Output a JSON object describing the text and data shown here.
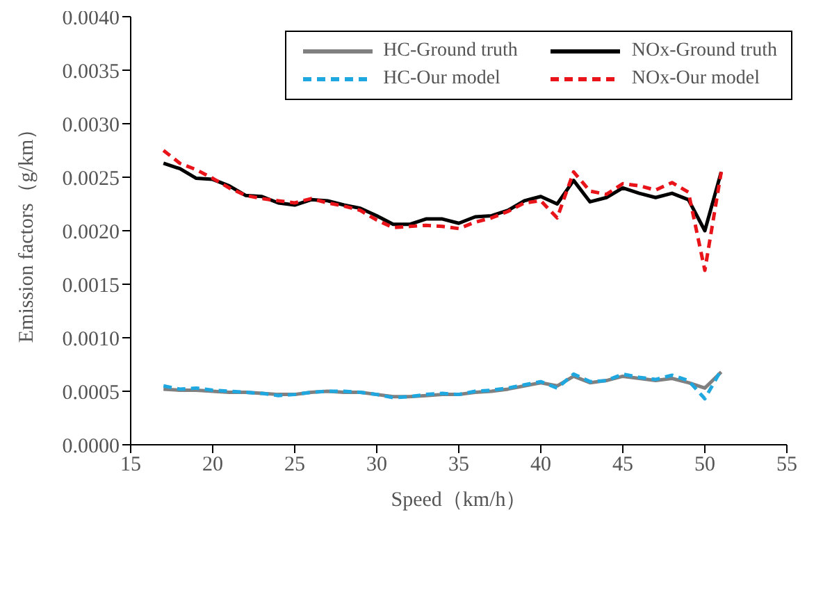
{
  "chart_data": {
    "type": "line",
    "xlabel": "Speed（km/h）",
    "ylabel": "Emission factors（g/km）",
    "x": [
      17,
      18,
      19,
      20,
      21,
      22,
      23,
      24,
      25,
      26,
      27,
      28,
      29,
      30,
      31,
      32,
      33,
      34,
      35,
      36,
      37,
      38,
      39,
      40,
      41,
      42,
      43,
      44,
      45,
      46,
      47,
      48,
      49,
      50,
      51
    ],
    "xlim": [
      15,
      55
    ],
    "xticks": [
      15,
      20,
      25,
      30,
      35,
      40,
      45,
      50,
      55
    ],
    "ylim": [
      0,
      0.004
    ],
    "yticks": [
      {
        "value": 0,
        "label": "0.0000"
      },
      {
        "value": 0.0005,
        "label": "0.0005"
      },
      {
        "value": 0.001,
        "label": "0.0010"
      },
      {
        "value": 0.0015,
        "label": "0.0015"
      },
      {
        "value": 0.002,
        "label": "0.0020"
      },
      {
        "value": 0.0025,
        "label": "0.0025"
      },
      {
        "value": 0.003,
        "label": "0.0030"
      },
      {
        "value": 0.0035,
        "label": "0.0035"
      },
      {
        "value": 0.004,
        "label": "0.0040"
      }
    ],
    "grid": false,
    "legend": "top right",
    "marker": "none",
    "series": [
      {
        "name": "HC-Ground truth",
        "color": "#808080",
        "line_style": "solid",
        "values": [
          0.00052,
          0.00051,
          0.00051,
          0.0005,
          0.00049,
          0.00049,
          0.00048,
          0.00047,
          0.00047,
          0.00049,
          0.0005,
          0.00049,
          0.00049,
          0.00047,
          0.00045,
          0.00045,
          0.00046,
          0.00047,
          0.00047,
          0.00049,
          0.0005,
          0.00052,
          0.00055,
          0.00058,
          0.00055,
          0.00064,
          0.00058,
          0.0006,
          0.00064,
          0.00062,
          0.0006,
          0.00062,
          0.00058,
          0.00053,
          0.00068
        ]
      },
      {
        "name": "NOx-Ground truth",
        "color": "#000000",
        "line_style": "solid",
        "values": [
          0.00263,
          0.00258,
          0.00249,
          0.00248,
          0.00242,
          0.00233,
          0.00232,
          0.00226,
          0.00224,
          0.00229,
          0.00228,
          0.00224,
          0.00221,
          0.00214,
          0.00206,
          0.00206,
          0.00211,
          0.00211,
          0.00207,
          0.00213,
          0.00214,
          0.00219,
          0.00228,
          0.00232,
          0.00225,
          0.00247,
          0.00227,
          0.00231,
          0.0024,
          0.00235,
          0.00231,
          0.00235,
          0.00229,
          0.002,
          0.00255
        ]
      },
      {
        "name": "HC-Our model",
        "color": "#1fa7e0",
        "line_style": "dashed",
        "values": [
          0.00055,
          0.00052,
          0.00053,
          0.00051,
          0.0005,
          0.00049,
          0.00048,
          0.00046,
          0.00047,
          0.00049,
          0.0005,
          0.0005,
          0.00049,
          0.00047,
          0.00044,
          0.00045,
          0.00047,
          0.00048,
          0.00047,
          0.0005,
          0.00051,
          0.00053,
          0.00056,
          0.00059,
          0.00053,
          0.00066,
          0.00059,
          0.0006,
          0.00066,
          0.00063,
          0.00061,
          0.00065,
          0.0006,
          0.00043,
          0.0007
        ]
      },
      {
        "name": "NOx-Our model",
        "color": "#e8141a",
        "line_style": "dashed",
        "values": [
          0.00275,
          0.00263,
          0.00257,
          0.00249,
          0.0024,
          0.00233,
          0.0023,
          0.00228,
          0.00226,
          0.0023,
          0.00226,
          0.00223,
          0.00219,
          0.0021,
          0.00203,
          0.00204,
          0.00205,
          0.00204,
          0.00202,
          0.00208,
          0.00212,
          0.00218,
          0.00226,
          0.00228,
          0.00212,
          0.00255,
          0.00237,
          0.00234,
          0.00244,
          0.00242,
          0.00238,
          0.00245,
          0.00236,
          0.00163,
          0.00255
        ]
      }
    ]
  }
}
